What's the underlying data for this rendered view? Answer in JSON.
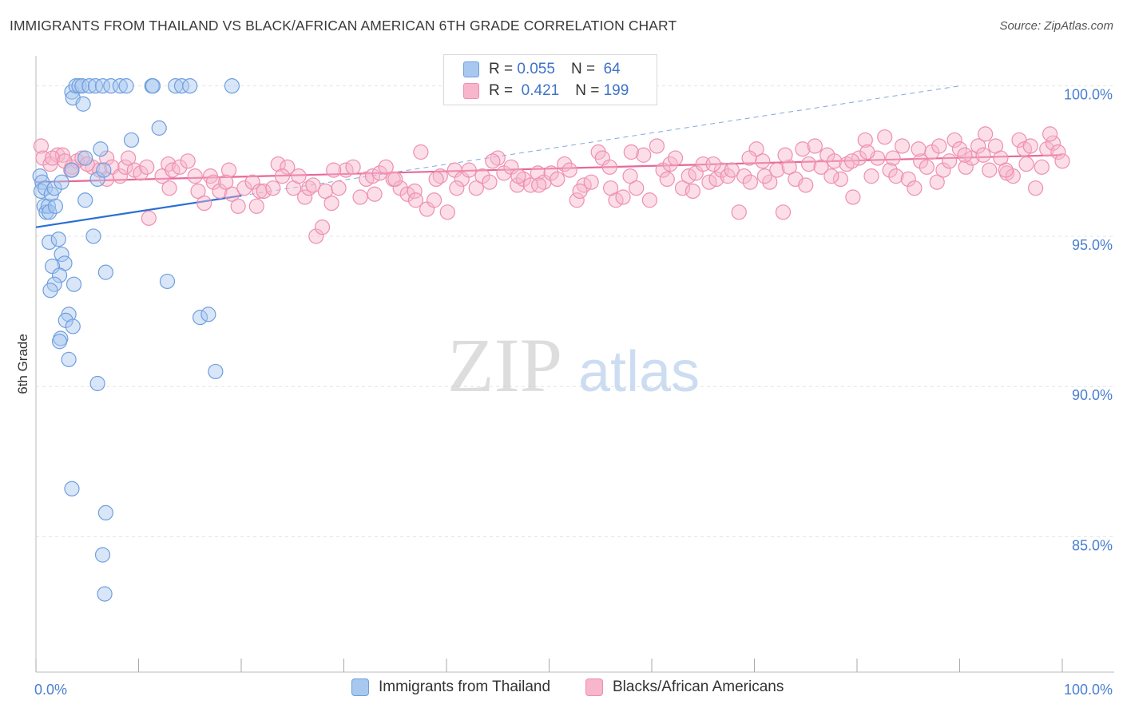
{
  "title": "IMMIGRANTS FROM THAILAND VS BLACK/AFRICAN AMERICAN 6TH GRADE CORRELATION CHART",
  "source": "Source: ZipAtlas.com",
  "watermark": {
    "zip": "ZIP",
    "atlas": "atlas"
  },
  "colors": {
    "blue_fill": "#a8c8f0",
    "blue_stroke": "#6f9fde",
    "blue_line": "#2a6fd4",
    "pink_fill": "#f7b6cb",
    "pink_stroke": "#ee8fae",
    "pink_line": "#e8679a",
    "tick_text": "#4a7fcf",
    "grid": "#e4e4e4"
  },
  "legend": {
    "rows": [
      {
        "r_label": "R =",
        "r_value": "0.055",
        "n_label": "N =",
        "n_value": "64"
      },
      {
        "r_label": "R =",
        "r_value": "0.421",
        "n_label": "N =",
        "n_value": "199"
      }
    ]
  },
  "bottom_legend": [
    "Immigrants from Thailand",
    "Blacks/African Americans"
  ],
  "chart_data": {
    "type": "scatter",
    "title": "IMMIGRANTS FROM THAILAND VS BLACK/AFRICAN AMERICAN 6TH GRADE CORRELATION CHART",
    "xlabel": "",
    "ylabel": "6th Grade",
    "xlim": [
      0,
      100
    ],
    "ylim": [
      80.5,
      101
    ],
    "x_tick_labels": [
      "0.0%",
      "100.0%"
    ],
    "y_ticks": [
      85,
      90,
      95,
      100
    ],
    "y_tick_labels": [
      "85.0%",
      "90.0%",
      "95.0%",
      "100.0%"
    ],
    "series": [
      {
        "name": "Immigrants from Thailand",
        "r": 0.055,
        "n": 64,
        "trend": {
          "x": [
            0,
            20
          ],
          "y": [
            95.3,
            96.35
          ]
        },
        "trend_ext": {
          "x": [
            20,
            90
          ],
          "y": [
            96.35,
            100.0
          ]
        },
        "points": [
          [
            0.4,
            97.0
          ],
          [
            0.6,
            96.8
          ],
          [
            0.5,
            96.5
          ],
          [
            0.9,
            96.6
          ],
          [
            0.8,
            96.0
          ],
          [
            1.0,
            95.8
          ],
          [
            1.2,
            96.0
          ],
          [
            1.5,
            96.4
          ],
          [
            1.8,
            96.6
          ],
          [
            1.3,
            95.8
          ],
          [
            1.9,
            96.0
          ],
          [
            2.5,
            96.8
          ],
          [
            3.5,
            99.8
          ],
          [
            3.6,
            99.6
          ],
          [
            3.9,
            100.0
          ],
          [
            4.2,
            100.0
          ],
          [
            4.5,
            100.0
          ],
          [
            4.6,
            99.4
          ],
          [
            5.2,
            100.0
          ],
          [
            5.8,
            100.0
          ],
          [
            6.0,
            96.9
          ],
          [
            6.5,
            100.0
          ],
          [
            7.3,
            100.0
          ],
          [
            8.2,
            100.0
          ],
          [
            9.3,
            98.2
          ],
          [
            8.8,
            100.0
          ],
          [
            11.3,
            100.0
          ],
          [
            12.0,
            98.6
          ],
          [
            11.4,
            100.0
          ],
          [
            13.6,
            100.0
          ],
          [
            14.2,
            100.0
          ],
          [
            15.0,
            100.0
          ],
          [
            19.1,
            100.0
          ],
          [
            6.3,
            97.9
          ],
          [
            4.8,
            97.6
          ],
          [
            3.5,
            97.2
          ],
          [
            6.6,
            97.2
          ],
          [
            4.8,
            96.2
          ],
          [
            1.3,
            94.8
          ],
          [
            2.2,
            94.9
          ],
          [
            2.5,
            94.4
          ],
          [
            2.8,
            94.1
          ],
          [
            1.6,
            94.0
          ],
          [
            2.3,
            93.7
          ],
          [
            1.8,
            93.4
          ],
          [
            3.7,
            93.4
          ],
          [
            1.4,
            93.2
          ],
          [
            6.8,
            93.8
          ],
          [
            12.8,
            93.5
          ],
          [
            3.2,
            92.4
          ],
          [
            2.9,
            92.2
          ],
          [
            3.6,
            92.0
          ],
          [
            16.0,
            92.3
          ],
          [
            16.8,
            92.4
          ],
          [
            2.4,
            91.6
          ],
          [
            2.3,
            91.5
          ],
          [
            3.2,
            90.9
          ],
          [
            17.5,
            90.5
          ],
          [
            6.0,
            90.1
          ],
          [
            3.5,
            86.6
          ],
          [
            6.8,
            85.8
          ],
          [
            6.5,
            84.4
          ],
          [
            6.7,
            83.1
          ],
          [
            5.6,
            95.0
          ]
        ]
      },
      {
        "name": "Blacks/African Americans",
        "r": 0.421,
        "n": 199,
        "trend": {
          "x": [
            0,
            100
          ],
          "y": [
            96.8,
            97.7
          ]
        },
        "points": [
          [
            0.5,
            98.0
          ],
          [
            0.7,
            97.6
          ],
          [
            1.4,
            97.4
          ],
          [
            2.1,
            97.7
          ],
          [
            2.6,
            97.7
          ],
          [
            3.5,
            97.3
          ],
          [
            4.0,
            97.5
          ],
          [
            4.5,
            97.6
          ],
          [
            5.5,
            97.3
          ],
          [
            6.2,
            97.2
          ],
          [
            6.9,
            97.6
          ],
          [
            7.4,
            97.3
          ],
          [
            8.2,
            97.0
          ],
          [
            8.7,
            97.3
          ],
          [
            9.6,
            97.2
          ],
          [
            10.2,
            97.1
          ],
          [
            10.8,
            97.3
          ],
          [
            11.0,
            95.6
          ],
          [
            12.3,
            97.0
          ],
          [
            12.9,
            97.4
          ],
          [
            13.3,
            97.2
          ],
          [
            14.0,
            97.3
          ],
          [
            14.8,
            97.5
          ],
          [
            15.8,
            96.5
          ],
          [
            16.4,
            96.1
          ],
          [
            17.0,
            97.0
          ],
          [
            17.3,
            96.8
          ],
          [
            17.9,
            96.5
          ],
          [
            18.8,
            97.2
          ],
          [
            19.1,
            96.4
          ],
          [
            19.7,
            96.0
          ],
          [
            20.3,
            96.6
          ],
          [
            21.1,
            96.8
          ],
          [
            21.8,
            96.5
          ],
          [
            22.2,
            96.5
          ],
          [
            23.1,
            96.6
          ],
          [
            23.6,
            97.4
          ],
          [
            24.5,
            97.3
          ],
          [
            25.1,
            96.6
          ],
          [
            25.6,
            97.0
          ],
          [
            26.2,
            96.3
          ],
          [
            26.6,
            96.6
          ],
          [
            27.3,
            95.0
          ],
          [
            27.9,
            95.3
          ],
          [
            28.2,
            96.5
          ],
          [
            28.8,
            96.1
          ],
          [
            29.5,
            96.6
          ],
          [
            30.2,
            97.2
          ],
          [
            30.9,
            97.3
          ],
          [
            31.6,
            96.3
          ],
          [
            32.2,
            96.9
          ],
          [
            32.8,
            97.0
          ],
          [
            33.5,
            97.1
          ],
          [
            34.1,
            97.3
          ],
          [
            34.8,
            96.9
          ],
          [
            35.5,
            96.6
          ],
          [
            36.2,
            96.4
          ],
          [
            36.9,
            96.5
          ],
          [
            37.5,
            97.8
          ],
          [
            38.1,
            95.9
          ],
          [
            38.8,
            96.2
          ],
          [
            39.4,
            97.0
          ],
          [
            40.1,
            95.8
          ],
          [
            40.8,
            97.2
          ],
          [
            41.5,
            96.9
          ],
          [
            42.2,
            97.2
          ],
          [
            42.9,
            96.6
          ],
          [
            43.5,
            97.0
          ],
          [
            44.2,
            96.8
          ],
          [
            45.0,
            97.6
          ],
          [
            45.6,
            97.1
          ],
          [
            46.3,
            97.3
          ],
          [
            46.9,
            96.7
          ],
          [
            47.5,
            96.9
          ],
          [
            48.2,
            96.7
          ],
          [
            48.9,
            97.1
          ],
          [
            49.5,
            96.8
          ],
          [
            50.2,
            97.1
          ],
          [
            50.8,
            96.9
          ],
          [
            51.5,
            97.4
          ],
          [
            52.0,
            97.2
          ],
          [
            52.7,
            96.2
          ],
          [
            53.4,
            96.7
          ],
          [
            54.1,
            96.8
          ],
          [
            54.8,
            97.8
          ],
          [
            55.2,
            97.6
          ],
          [
            55.9,
            97.3
          ],
          [
            56.5,
            96.2
          ],
          [
            57.2,
            96.3
          ],
          [
            57.9,
            97.0
          ],
          [
            58.5,
            96.6
          ],
          [
            59.2,
            97.7
          ],
          [
            59.8,
            96.2
          ],
          [
            60.5,
            98.0
          ],
          [
            61.1,
            97.2
          ],
          [
            61.8,
            97.4
          ],
          [
            62.3,
            97.6
          ],
          [
            63.0,
            96.6
          ],
          [
            63.6,
            97.0
          ],
          [
            64.3,
            97.1
          ],
          [
            65.0,
            97.4
          ],
          [
            65.6,
            96.8
          ],
          [
            66.3,
            96.9
          ],
          [
            66.8,
            97.2
          ],
          [
            67.4,
            97.0
          ],
          [
            67.8,
            97.2
          ],
          [
            68.5,
            95.8
          ],
          [
            69.0,
            97.0
          ],
          [
            69.6,
            96.8
          ],
          [
            70.2,
            97.9
          ],
          [
            70.8,
            97.5
          ],
          [
            71.5,
            96.8
          ],
          [
            72.2,
            97.2
          ],
          [
            72.8,
            95.8
          ],
          [
            73.4,
            97.3
          ],
          [
            74.0,
            96.9
          ],
          [
            74.7,
            97.9
          ],
          [
            75.3,
            97.4
          ],
          [
            75.9,
            98.0
          ],
          [
            76.5,
            97.3
          ],
          [
            77.1,
            97.7
          ],
          [
            77.8,
            97.5
          ],
          [
            78.4,
            96.9
          ],
          [
            79.0,
            97.4
          ],
          [
            79.6,
            96.3
          ],
          [
            80.2,
            97.6
          ],
          [
            80.8,
            98.2
          ],
          [
            81.4,
            97.0
          ],
          [
            82.0,
            97.6
          ],
          [
            82.7,
            98.3
          ],
          [
            83.2,
            97.2
          ],
          [
            83.8,
            97.0
          ],
          [
            84.4,
            98.0
          ],
          [
            85.0,
            96.9
          ],
          [
            85.6,
            96.6
          ],
          [
            86.2,
            97.5
          ],
          [
            86.8,
            97.3
          ],
          [
            87.3,
            97.8
          ],
          [
            87.8,
            96.8
          ],
          [
            88.4,
            97.2
          ],
          [
            89.0,
            97.5
          ],
          [
            89.5,
            98.2
          ],
          [
            90.0,
            97.9
          ],
          [
            90.6,
            97.3
          ],
          [
            91.2,
            97.6
          ],
          [
            91.8,
            98.0
          ],
          [
            92.3,
            97.7
          ],
          [
            92.9,
            97.2
          ],
          [
            93.5,
            98.0
          ],
          [
            94.0,
            97.6
          ],
          [
            94.6,
            97.1
          ],
          [
            95.2,
            97.0
          ],
          [
            95.8,
            98.2
          ],
          [
            96.3,
            97.9
          ],
          [
            96.9,
            98.0
          ],
          [
            97.4,
            96.6
          ],
          [
            98.0,
            97.3
          ],
          [
            98.5,
            97.9
          ],
          [
            99.1,
            98.1
          ],
          [
            99.6,
            97.8
          ],
          [
            100.0,
            97.5
          ],
          [
            1.6,
            97.6
          ],
          [
            2.8,
            97.5
          ],
          [
            3.4,
            97.2
          ],
          [
            5.0,
            97.4
          ],
          [
            6.9,
            96.9
          ],
          [
            9.0,
            97.6
          ],
          [
            13.0,
            96.6
          ],
          [
            15.5,
            97.0
          ],
          [
            18.5,
            96.8
          ],
          [
            21.5,
            96.0
          ],
          [
            24.0,
            97.0
          ],
          [
            27.0,
            96.7
          ],
          [
            29.0,
            97.2
          ],
          [
            33.0,
            96.4
          ],
          [
            35.0,
            96.9
          ],
          [
            37.0,
            96.2
          ],
          [
            39.0,
            96.9
          ],
          [
            41.0,
            96.6
          ],
          [
            44.5,
            97.5
          ],
          [
            47.0,
            97.0
          ],
          [
            49.0,
            96.7
          ],
          [
            53.0,
            96.5
          ],
          [
            56.0,
            96.6
          ],
          [
            58.0,
            97.8
          ],
          [
            61.5,
            96.9
          ],
          [
            64.0,
            96.5
          ],
          [
            66.0,
            97.4
          ],
          [
            69.5,
            97.6
          ],
          [
            71.0,
            97.0
          ],
          [
            73.0,
            97.7
          ],
          [
            75.0,
            96.7
          ],
          [
            77.5,
            97.0
          ],
          [
            79.5,
            97.5
          ],
          [
            81.0,
            97.8
          ],
          [
            83.5,
            97.6
          ],
          [
            86.0,
            97.9
          ],
          [
            88.0,
            98.0
          ],
          [
            90.5,
            97.7
          ],
          [
            92.5,
            98.4
          ],
          [
            94.5,
            97.2
          ],
          [
            96.5,
            97.4
          ],
          [
            98.8,
            98.4
          ]
        ]
      }
    ]
  }
}
